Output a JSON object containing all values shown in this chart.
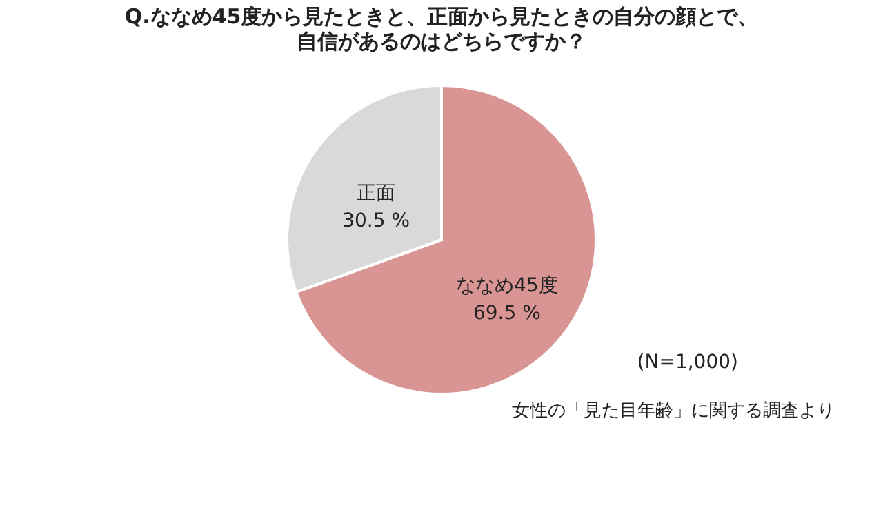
{
  "chart_data": {
    "type": "pie",
    "title": "Q.ななめ45度から見たときと、正面から見たときの自分の顔とで、",
    "subtitle": "自信があるのはどちらですか？",
    "categories": [
      "ななめ45度",
      "正面"
    ],
    "values": [
      69.5,
      30.5
    ],
    "value_labels": [
      "69.5 %",
      "30.5 %"
    ],
    "colors": [
      "#d99594",
      "#d9d9d9"
    ],
    "legend": false,
    "annotations": [
      "(N=1,000)",
      "女性の「見た目年齢」に関する調査より"
    ]
  }
}
